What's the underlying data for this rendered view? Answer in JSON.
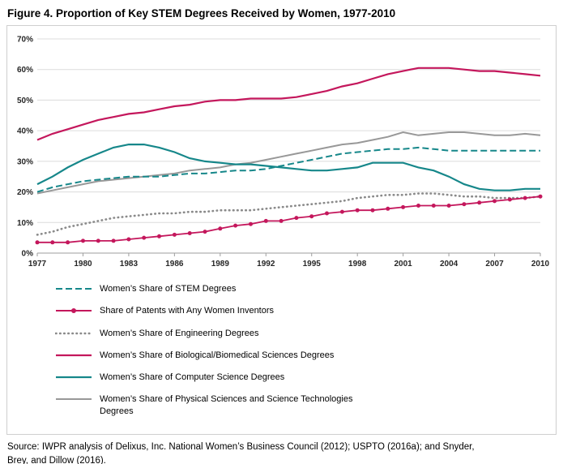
{
  "title": "Figure 4. Proportion of Key STEM Degrees Received by Women, 1977-2010",
  "chart_data": {
    "type": "line",
    "title": "Figure 4. Proportion of Key STEM Degrees Received by Women, 1977-2010",
    "xlabel": "",
    "ylabel": "",
    "ylim": [
      0,
      70
    ],
    "grid": true,
    "legend_position": "bottom-left",
    "x": [
      1977,
      1978,
      1979,
      1980,
      1981,
      1982,
      1983,
      1984,
      1985,
      1986,
      1987,
      1988,
      1989,
      1990,
      1991,
      1992,
      1993,
      1994,
      1995,
      1996,
      1997,
      1998,
      1999,
      2000,
      2001,
      2002,
      2003,
      2004,
      2005,
      2006,
      2007,
      2008,
      2009,
      2010
    ],
    "x_ticks": [
      1977,
      1980,
      1983,
      1986,
      1989,
      1992,
      1995,
      1998,
      2001,
      2004,
      2007,
      2010
    ],
    "y_ticks": [
      "0%",
      "10%",
      "20%",
      "30%",
      "40%",
      "50%",
      "60%",
      "70%"
    ],
    "draw_order": [
      2,
      5,
      4,
      0,
      3,
      1
    ],
    "series": [
      {
        "label": "Women’s Share of STEM Degrees",
        "color": "#16878A",
        "style": "dashed",
        "dash": "8 4",
        "width": 2,
        "markers": false,
        "values": [
          20,
          21.5,
          22.5,
          23.5,
          24,
          24.5,
          25,
          25,
          25,
          25.5,
          26,
          26,
          26.5,
          27,
          27,
          27.5,
          28.5,
          29.5,
          30.5,
          31.5,
          32.5,
          33,
          33.5,
          34,
          34,
          34.5,
          34,
          33.5,
          33.5,
          33.5,
          33.5,
          33.5,
          33.5,
          33.5
        ]
      },
      {
        "label": "Share of Patents with Any Women Inventors",
        "color": "#C4175C",
        "style": "solid-markers",
        "width": 1.8,
        "markers": true,
        "values": [
          3.5,
          3.5,
          3.5,
          4,
          4,
          4,
          4.5,
          5,
          5.5,
          6,
          6.5,
          7,
          8,
          9,
          9.5,
          10.5,
          10.5,
          11.5,
          12,
          13,
          13.5,
          14,
          14,
          14.5,
          15,
          15.5,
          15.5,
          15.5,
          16,
          16.5,
          17,
          17.5,
          18,
          18.5
        ]
      },
      {
        "label": "Women’s Share of Engineering Degrees",
        "color": "#8A8A8A",
        "style": "dotted",
        "dash": "0.5 4.6",
        "linecap": "round",
        "width": 2.6,
        "markers": false,
        "values": [
          6,
          7,
          8.5,
          9.5,
          10.5,
          11.5,
          12,
          12.5,
          13,
          13,
          13.5,
          13.5,
          14,
          14,
          14,
          14.5,
          15,
          15.5,
          16,
          16.5,
          17,
          18,
          18.5,
          19,
          19,
          19.5,
          19.5,
          19,
          18.5,
          18.5,
          18,
          18,
          18,
          18.5
        ]
      },
      {
        "label": "Women’s Share of Biological/Biomedical Sciences Degrees",
        "color": "#C4175C",
        "style": "solid",
        "width": 2.2,
        "markers": false,
        "values": [
          37,
          39,
          40.5,
          42,
          43.5,
          44.5,
          45.5,
          46,
          47,
          48,
          48.5,
          49.5,
          50,
          50,
          50.5,
          50.5,
          50.5,
          51,
          52,
          53,
          54.5,
          55.5,
          57,
          58.5,
          59.5,
          60.5,
          60.5,
          60.5,
          60,
          59.5,
          59.5,
          59,
          58.5,
          58
        ]
      },
      {
        "label": "Women’s Share of Computer Science Degrees",
        "color": "#16878A",
        "style": "solid",
        "width": 2.2,
        "markers": false,
        "values": [
          22.5,
          25,
          28,
          30.5,
          32.5,
          34.5,
          35.5,
          35.5,
          34.5,
          33,
          31,
          30,
          29.5,
          29,
          29,
          28.5,
          28,
          27.5,
          27,
          27,
          27.5,
          28,
          29.5,
          29.5,
          29.5,
          28,
          27,
          25,
          22.5,
          21,
          20.5,
          20.5,
          21,
          21
        ]
      },
      {
        "label": "Women’s Share of Physical Sciences and Science Technologies Degrees",
        "color": "#989898",
        "style": "solid",
        "width": 2,
        "markers": false,
        "values": [
          19.5,
          20.5,
          21.5,
          22.5,
          23.5,
          24,
          24.5,
          25,
          25.5,
          26,
          27,
          27.5,
          28,
          29,
          29.5,
          30.5,
          31.5,
          32.5,
          33.5,
          34.5,
          35.5,
          36,
          37,
          38,
          39.5,
          38.5,
          39,
          39.5,
          39.5,
          39,
          38.5,
          38.5,
          39,
          38.5
        ]
      }
    ]
  },
  "source": {
    "line1": "Source: IWPR analysis of Delixus, Inc.  National Women’s Business Council (2012); USPTO (2016a); and Snyder,",
    "line2_word1": "Brey,",
    "line2_mid": " and ",
    "line2_word2": "Dillow",
    "line2_end": " (2016)."
  }
}
